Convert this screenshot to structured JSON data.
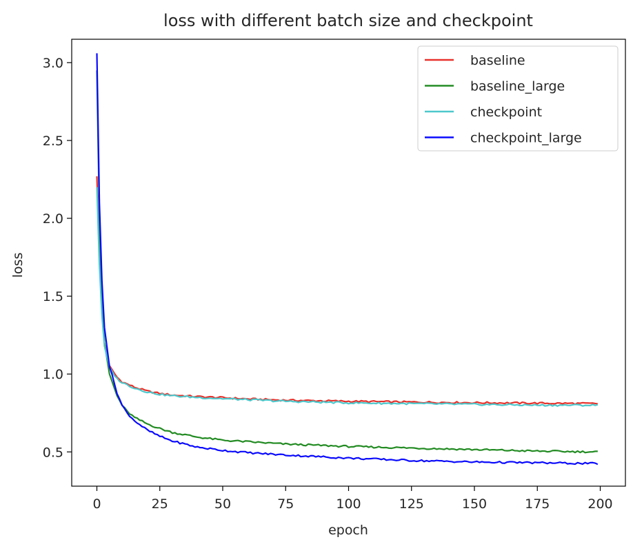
{
  "chart_data": {
    "type": "line",
    "title": "loss with different batch size and checkpoint",
    "xlabel": "epoch",
    "ylabel": "loss",
    "xlim": [
      -10,
      210
    ],
    "ylim": [
      0.28,
      3.15
    ],
    "xticks": [
      0,
      25,
      50,
      75,
      100,
      125,
      150,
      175,
      200
    ],
    "yticks": [
      0.5,
      1.0,
      1.5,
      2.0,
      2.5,
      3.0
    ],
    "ytick_labels": [
      "0.5",
      "1.0",
      "1.5",
      "2.0",
      "2.5",
      "3.0"
    ],
    "grid": false,
    "legend_position": "top-right",
    "series": [
      {
        "name": "baseline",
        "color": "#e8302a",
        "points": [
          [
            0,
            2.27
          ],
          [
            1,
            1.75
          ],
          [
            2,
            1.4
          ],
          [
            3,
            1.2
          ],
          [
            5,
            1.05
          ],
          [
            8,
            0.98
          ],
          [
            10,
            0.95
          ],
          [
            15,
            0.915
          ],
          [
            20,
            0.89
          ],
          [
            25,
            0.875
          ],
          [
            30,
            0.865
          ],
          [
            40,
            0.855
          ],
          [
            50,
            0.848
          ],
          [
            60,
            0.84
          ],
          [
            75,
            0.832
          ],
          [
            100,
            0.825
          ],
          [
            125,
            0.82
          ],
          [
            150,
            0.816
          ],
          [
            175,
            0.813
          ],
          [
            199,
            0.81
          ]
        ]
      },
      {
        "name": "baseline_large",
        "color": "#228b22",
        "points": [
          [
            0,
            2.95
          ],
          [
            1,
            2.0
          ],
          [
            2,
            1.5
          ],
          [
            3,
            1.2
          ],
          [
            5,
            1.0
          ],
          [
            8,
            0.86
          ],
          [
            10,
            0.8
          ],
          [
            12,
            0.76
          ],
          [
            15,
            0.72
          ],
          [
            20,
            0.68
          ],
          [
            25,
            0.65
          ],
          [
            30,
            0.625
          ],
          [
            40,
            0.595
          ],
          [
            50,
            0.575
          ],
          [
            60,
            0.565
          ],
          [
            75,
            0.55
          ],
          [
            100,
            0.535
          ],
          [
            125,
            0.525
          ],
          [
            150,
            0.515
          ],
          [
            175,
            0.505
          ],
          [
            199,
            0.5
          ]
        ]
      },
      {
        "name": "checkpoint",
        "color": "#4cc8cc",
        "points": [
          [
            0,
            2.2
          ],
          [
            1,
            1.7
          ],
          [
            2,
            1.38
          ],
          [
            3,
            1.18
          ],
          [
            5,
            1.04
          ],
          [
            8,
            0.97
          ],
          [
            10,
            0.945
          ],
          [
            15,
            0.91
          ],
          [
            20,
            0.885
          ],
          [
            25,
            0.87
          ],
          [
            30,
            0.86
          ],
          [
            40,
            0.85
          ],
          [
            50,
            0.842
          ],
          [
            60,
            0.835
          ],
          [
            75,
            0.825
          ],
          [
            100,
            0.815
          ],
          [
            125,
            0.81
          ],
          [
            150,
            0.805
          ],
          [
            175,
            0.8
          ],
          [
            199,
            0.8
          ]
        ]
      },
      {
        "name": "checkpoint_large",
        "color": "#0a0aff",
        "points": [
          [
            0,
            3.06
          ],
          [
            1,
            2.1
          ],
          [
            2,
            1.6
          ],
          [
            3,
            1.3
          ],
          [
            5,
            1.05
          ],
          [
            8,
            0.88
          ],
          [
            10,
            0.8
          ],
          [
            12,
            0.75
          ],
          [
            15,
            0.7
          ],
          [
            20,
            0.64
          ],
          [
            25,
            0.6
          ],
          [
            30,
            0.57
          ],
          [
            40,
            0.53
          ],
          [
            50,
            0.51
          ],
          [
            60,
            0.495
          ],
          [
            75,
            0.48
          ],
          [
            100,
            0.46
          ],
          [
            125,
            0.445
          ],
          [
            150,
            0.435
          ],
          [
            175,
            0.43
          ],
          [
            199,
            0.425
          ]
        ]
      }
    ]
  }
}
